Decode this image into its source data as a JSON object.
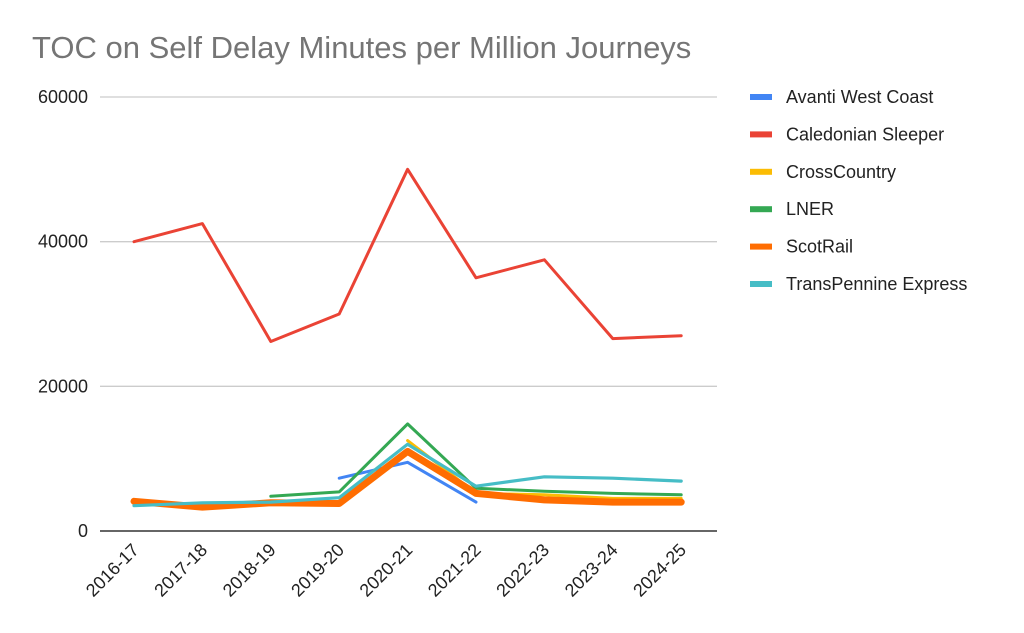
{
  "chart_data": {
    "type": "line",
    "title": "TOC on Self Delay Minutes per Million Journeys",
    "xlabel": "",
    "ylabel": "",
    "categories": [
      "2016-17",
      "2017-18",
      "2018-19",
      "2019-20",
      "2020-21",
      "2021-22",
      "2022-23",
      "2023-24",
      "2024-25"
    ],
    "ylim": [
      0,
      60000
    ],
    "yticks": [
      "0",
      "20000",
      "40000",
      "60000"
    ],
    "grid": true,
    "legend_position": "right",
    "series": [
      {
        "name": "Avanti West Coast",
        "color": "#4285f4",
        "values": [
          null,
          null,
          null,
          7300,
          9500,
          4000,
          null,
          null,
          null
        ]
      },
      {
        "name": "Caledonian Sleeper",
        "color": "#ea4335",
        "values": [
          40000,
          42500,
          26200,
          30000,
          50000,
          35000,
          37500,
          26600,
          27000
        ]
      },
      {
        "name": "CrossCountry",
        "color": "#fbbc04",
        "values": [
          null,
          null,
          null,
          null,
          12500,
          5200,
          5000,
          4500,
          4500
        ]
      },
      {
        "name": "LNER",
        "color": "#34a853",
        "values": [
          null,
          null,
          4800,
          5400,
          14800,
          5900,
          5500,
          5200,
          5000
        ]
      },
      {
        "name": "ScotRail",
        "color": "#ff6d01",
        "values": [
          4100,
          3300,
          3900,
          3800,
          11000,
          5200,
          4300,
          4000,
          4000
        ]
      },
      {
        "name": "TransPennine Express",
        "color": "#46bdc6",
        "values": [
          3500,
          3900,
          4000,
          4600,
          12000,
          6200,
          7500,
          7300,
          6900
        ]
      }
    ]
  }
}
